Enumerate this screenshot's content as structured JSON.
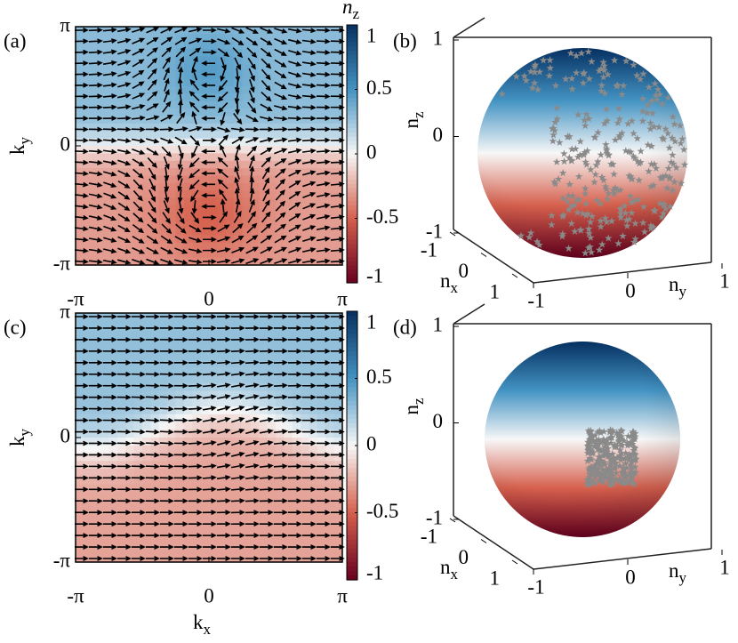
{
  "chart_data": [
    {
      "type": "quiver",
      "panel": "(a)",
      "xlim": [
        -3.14159,
        3.14159
      ],
      "ylim": [
        -3.14159,
        3.14159
      ],
      "xticks": [
        {
          "value": -3.14159,
          "label": "-π"
        },
        0,
        {
          "value": 3.14159,
          "label": "π"
        }
      ],
      "yticks": [
        {
          "value": -3.14159,
          "label": "-π"
        },
        0,
        {
          "value": 3.14159,
          "label": "π"
        }
      ],
      "ylabel": {
        "base": "k",
        "sub": "y"
      },
      "colorbar": {
        "label": {
          "base": "n",
          "sub": "z"
        },
        "clim": [
          -1,
          1
        ],
        "cticks": [
          -1,
          -0.5,
          0,
          0.5,
          1
        ]
      }
    },
    {
      "type": "sphere",
      "panel": "(b)",
      "xlim": [
        -1,
        1
      ],
      "ylim": [
        -1,
        1
      ],
      "zlim": [
        -1,
        1
      ],
      "xticks": [
        -1,
        0,
        1
      ],
      "yticks": [
        -1,
        0,
        1
      ],
      "zticks": [
        -1,
        0,
        1
      ],
      "xlabel": {
        "base": "n",
        "sub": "x"
      },
      "ylabel": {
        "base": "n",
        "sub": "y"
      },
      "zlabel": {
        "base": "n",
        "sub": "z"
      }
    },
    {
      "type": "quiver",
      "panel": "(c)",
      "xlim": [
        -3.14159,
        3.14159
      ],
      "ylim": [
        -3.14159,
        3.14159
      ],
      "xticks": [
        {
          "value": -3.14159,
          "label": "-π"
        },
        0,
        {
          "value": 3.14159,
          "label": "π"
        }
      ],
      "yticks": [
        {
          "value": -3.14159,
          "label": "-π"
        },
        0,
        {
          "value": 3.14159,
          "label": "π"
        }
      ],
      "xlabel": {
        "base": "k",
        "sub": "x"
      },
      "ylabel": {
        "base": "k",
        "sub": "y"
      },
      "colorbar": {
        "clim": [
          -1,
          1
        ],
        "cticks": [
          -1,
          -0.5,
          0,
          0.5,
          1
        ]
      }
    },
    {
      "type": "sphere",
      "panel": "(d)",
      "xlim": [
        -1,
        1
      ],
      "ylim": [
        -1,
        1
      ],
      "zlim": [
        -1,
        1
      ],
      "xticks": [
        -1,
        0,
        1
      ],
      "yticks": [
        -1,
        0,
        1
      ],
      "zticks": [
        -1,
        0,
        1
      ],
      "xlabel": {
        "base": "n",
        "sub": "x"
      },
      "ylabel": {
        "base": "n",
        "sub": "y"
      },
      "zlabel": {
        "base": "n",
        "sub": "z"
      }
    }
  ]
}
